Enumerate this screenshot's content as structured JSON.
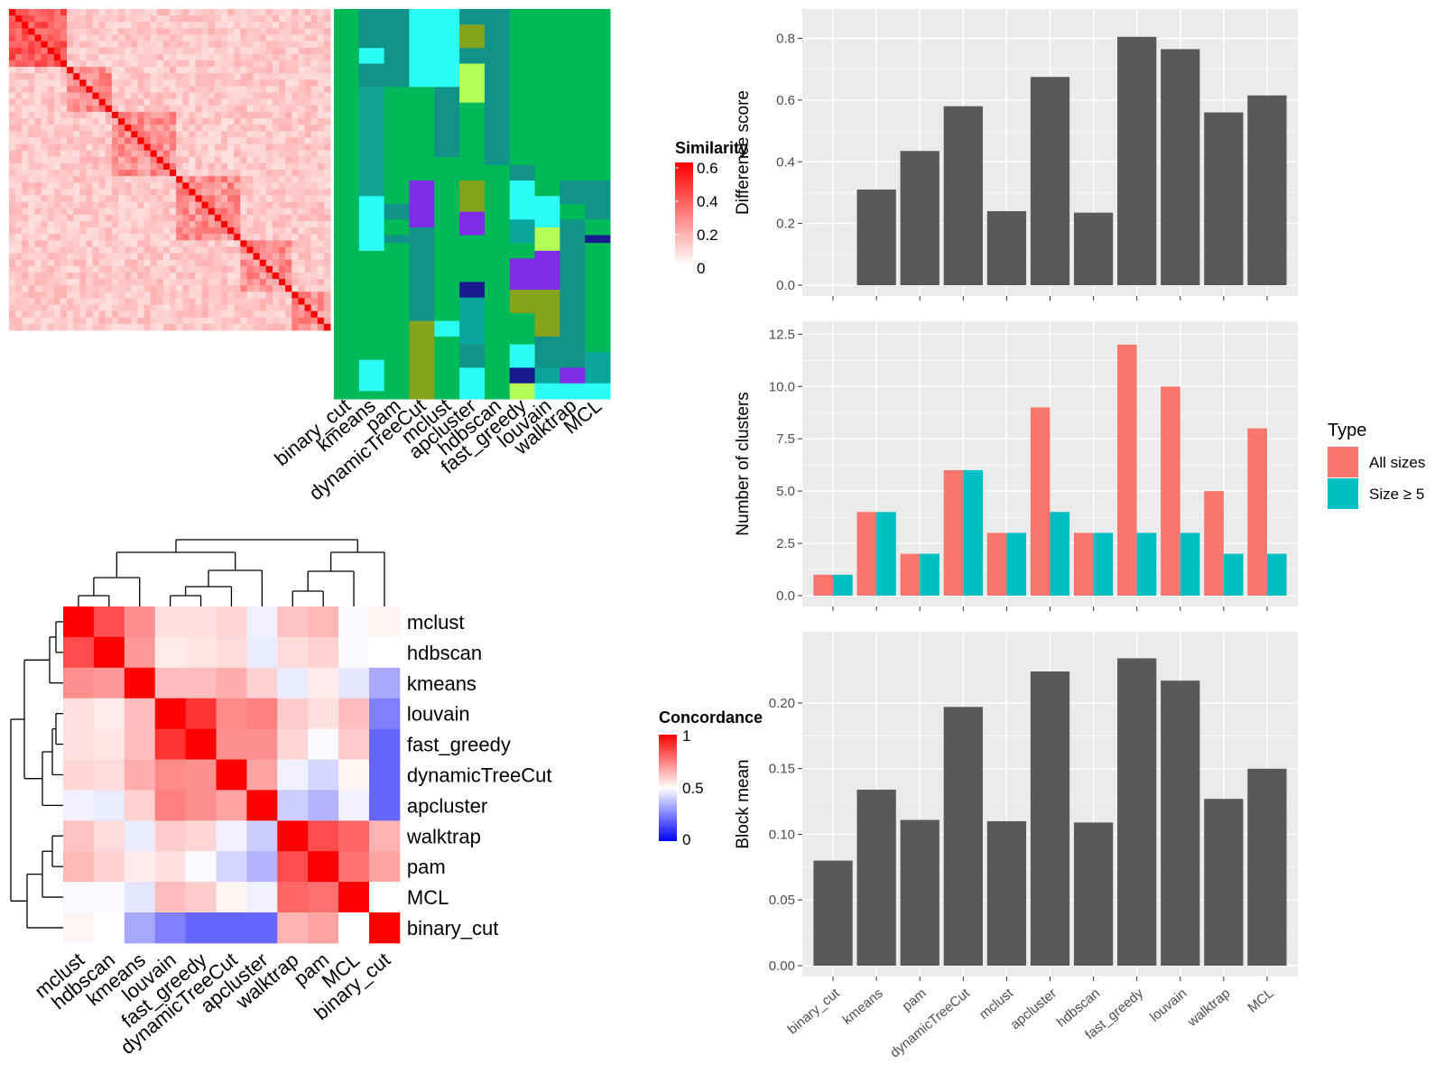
{
  "methods_order": [
    "binary_cut",
    "kmeans",
    "pam",
    "dynamicTreeCut",
    "mclust",
    "apcluster",
    "hdbscan",
    "fast_greedy",
    "louvain",
    "walktrap",
    "MCL"
  ],
  "similarity_legend": {
    "title": "Similarity",
    "ticks": [
      "0.6",
      "0.4",
      "0.2",
      "0"
    ]
  },
  "similarity_heatmap": {
    "n": 50,
    "colors": {
      "low": "#ffffff",
      "high": "#ff0000"
    }
  },
  "membership_heatmap": {
    "columns": [
      "binary_cut",
      "kmeans",
      "pam",
      "dynamicTreeCut",
      "mclust",
      "apcluster",
      "hdbscan",
      "fast_greedy",
      "louvain",
      "walktrap",
      "MCL"
    ]
  },
  "concordance_heatmap": {
    "legend_title": "Concordance",
    "legend_ticks": [
      "1",
      "0.5",
      "0"
    ],
    "order": [
      "mclust",
      "hdbscan",
      "kmeans",
      "louvain",
      "fast_greedy",
      "dynamicTreeCut",
      "apcluster",
      "walktrap",
      "pam",
      "MCL",
      "binary_cut"
    ],
    "matrix": [
      [
        1.0,
        0.85,
        0.72,
        0.56,
        0.56,
        0.58,
        0.47,
        0.62,
        0.64,
        0.49,
        0.52
      ],
      [
        0.85,
        1.0,
        0.7,
        0.54,
        0.55,
        0.57,
        0.46,
        0.57,
        0.59,
        0.49,
        0.5
      ],
      [
        0.72,
        0.7,
        1.0,
        0.63,
        0.63,
        0.66,
        0.59,
        0.46,
        0.54,
        0.45,
        0.33
      ],
      [
        0.56,
        0.54,
        0.63,
        1.0,
        0.9,
        0.73,
        0.75,
        0.6,
        0.56,
        0.63,
        0.25
      ],
      [
        0.56,
        0.55,
        0.63,
        0.9,
        1.0,
        0.72,
        0.72,
        0.58,
        0.49,
        0.6,
        0.2
      ],
      [
        0.58,
        0.57,
        0.66,
        0.73,
        0.72,
        1.0,
        0.68,
        0.47,
        0.42,
        0.52,
        0.2
      ],
      [
        0.47,
        0.46,
        0.59,
        0.75,
        0.72,
        0.68,
        1.0,
        0.4,
        0.35,
        0.47,
        0.2
      ],
      [
        0.62,
        0.57,
        0.46,
        0.6,
        0.58,
        0.47,
        0.4,
        1.0,
        0.85,
        0.8,
        0.65
      ],
      [
        0.64,
        0.59,
        0.54,
        0.56,
        0.49,
        0.42,
        0.35,
        0.85,
        1.0,
        0.78,
        0.68
      ],
      [
        0.49,
        0.49,
        0.45,
        0.63,
        0.6,
        0.52,
        0.47,
        0.8,
        0.78,
        1.0,
        0.5
      ],
      [
        0.52,
        0.5,
        0.33,
        0.25,
        0.2,
        0.2,
        0.2,
        0.65,
        0.68,
        0.5,
        1.0
      ]
    ]
  },
  "chart_data": [
    {
      "type": "bar",
      "categories": [
        "binary_cut",
        "kmeans",
        "pam",
        "dynamicTreeCut",
        "mclust",
        "apcluster",
        "hdbscan",
        "fast_greedy",
        "louvain",
        "walktrap",
        "MCL"
      ],
      "values": [
        0,
        0.31,
        0.435,
        0.58,
        0.24,
        0.675,
        0.235,
        0.805,
        0.765,
        0.56,
        0.615
      ],
      "xlabel": "",
      "ylabel": "Difference score",
      "ylim": [
        0,
        0.86
      ],
      "yticks": [
        "0.0",
        "0.2",
        "0.4",
        "0.6",
        "0.8"
      ],
      "color": "#595959",
      "grid": true
    },
    {
      "type": "bar",
      "categories": [
        "binary_cut",
        "kmeans",
        "pam",
        "dynamicTreeCut",
        "mclust",
        "apcluster",
        "hdbscan",
        "fast_greedy",
        "louvain",
        "walktrap",
        "MCL"
      ],
      "series": [
        {
          "name": "All sizes",
          "values": [
            1,
            4,
            2,
            6,
            3,
            9,
            3,
            12,
            10,
            5,
            8
          ],
          "color": "#f8766d"
        },
        {
          "name": "Size ≥ 5",
          "values": [
            1,
            4,
            2,
            6,
            3,
            4,
            3,
            3,
            3,
            2,
            2
          ],
          "color": "#00bfc4"
        }
      ],
      "xlabel": "",
      "ylabel": "Number of clusters",
      "ylim": [
        0,
        12.6
      ],
      "yticks": [
        "0.0",
        "2.5",
        "5.0",
        "7.5",
        "10.0",
        "12.5"
      ],
      "legend_title": "Type",
      "legend_position": "right",
      "grid": true
    },
    {
      "type": "bar",
      "categories": [
        "binary_cut",
        "kmeans",
        "pam",
        "dynamicTreeCut",
        "mclust",
        "apcluster",
        "hdbscan",
        "fast_greedy",
        "louvain",
        "walktrap",
        "MCL"
      ],
      "values": [
        0.08,
        0.134,
        0.111,
        0.197,
        0.11,
        0.224,
        0.109,
        0.234,
        0.217,
        0.127,
        0.15
      ],
      "xlabel": "",
      "ylabel": "Block mean",
      "ylim": [
        0,
        0.246
      ],
      "yticks": [
        "0.00",
        "0.05",
        "0.10",
        "0.15",
        "0.20"
      ],
      "color": "#595959",
      "grid": true
    }
  ]
}
